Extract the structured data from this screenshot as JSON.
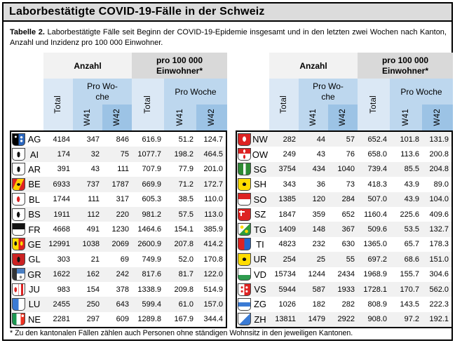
{
  "page": {
    "title": "Laborbestätigte COVID-19-Fälle in der Schweiz",
    "caption_label": "Tabelle 2.",
    "caption_text": " Laborbestätigte Fälle seit Beginn der COVID-19-Epidemie insgesamt und in den letzten zwei Wochen nach Kanton, Anzahl und Inzidenz pro 100 000 Einwohner.",
    "footnote": "* Zu den kantonalen Fällen zählen auch Personen ohne ständigen Wohnsitz in den jeweiligen Kantonen."
  },
  "header": {
    "anzahl": "Anzahl",
    "per_100k": "pro 100 000 Einwohner*",
    "total": "Total",
    "pro_woche_wrapped": "Pro Wo-\nche",
    "pro_woche": "Pro Woche",
    "w41": "W41",
    "w42": "W42"
  },
  "left_rows": [
    {
      "canton": "AG",
      "total": "4184",
      "w41": "347",
      "w42": "846",
      "total_100k": "616.9",
      "w41_100k": "51.2",
      "w42_100k": "124.7"
    },
    {
      "canton": "AI",
      "total": "174",
      "w41": "32",
      "w42": "75",
      "total_100k": "1077.7",
      "w41_100k": "198.2",
      "w42_100k": "464.5"
    },
    {
      "canton": "AR",
      "total": "391",
      "w41": "43",
      "w42": "111",
      "total_100k": "707.9",
      "w41_100k": "77.9",
      "w42_100k": "201.0"
    },
    {
      "canton": "BE",
      "total": "6933",
      "w41": "737",
      "w42": "1787",
      "total_100k": "669.9",
      "w41_100k": "71.2",
      "w42_100k": "172.7"
    },
    {
      "canton": "BL",
      "total": "1744",
      "w41": "111",
      "w42": "317",
      "total_100k": "605.3",
      "w41_100k": "38.5",
      "w42_100k": "110.0"
    },
    {
      "canton": "BS",
      "total": "1911",
      "w41": "112",
      "w42": "220",
      "total_100k": "981.2",
      "w41_100k": "57.5",
      "w42_100k": "113.0"
    },
    {
      "canton": "FR",
      "total": "4668",
      "w41": "491",
      "w42": "1230",
      "total_100k": "1464.6",
      "w41_100k": "154.1",
      "w42_100k": "385.9"
    },
    {
      "canton": "GE",
      "total": "12991",
      "w41": "1038",
      "w42": "2069",
      "total_100k": "2600.9",
      "w41_100k": "207.8",
      "w42_100k": "414.2"
    },
    {
      "canton": "GL",
      "total": "303",
      "w41": "21",
      "w42": "69",
      "total_100k": "749.9",
      "w41_100k": "52.0",
      "w42_100k": "170.8"
    },
    {
      "canton": "GR",
      "total": "1622",
      "w41": "162",
      "w42": "242",
      "total_100k": "817.6",
      "w41_100k": "81.7",
      "w42_100k": "122.0"
    },
    {
      "canton": "JU",
      "total": "983",
      "w41": "154",
      "w42": "378",
      "total_100k": "1338.9",
      "w41_100k": "209.8",
      "w42_100k": "514.9"
    },
    {
      "canton": "LU",
      "total": "2455",
      "w41": "250",
      "w42": "643",
      "total_100k": "599.4",
      "w41_100k": "61.0",
      "w42_100k": "157.0"
    },
    {
      "canton": "NE",
      "total": "2281",
      "w41": "297",
      "w42": "609",
      "total_100k": "1289.8",
      "w41_100k": "167.9",
      "w42_100k": "344.4"
    }
  ],
  "right_rows": [
    {
      "canton": "NW",
      "total": "282",
      "w41": "44",
      "w42": "57",
      "total_100k": "652.4",
      "w41_100k": "101.8",
      "w42_100k": "131.9"
    },
    {
      "canton": "OW",
      "total": "249",
      "w41": "43",
      "w42": "76",
      "total_100k": "658.0",
      "w41_100k": "113.6",
      "w42_100k": "200.8"
    },
    {
      "canton": "SG",
      "total": "3754",
      "w41": "434",
      "w42": "1040",
      "total_100k": "739.4",
      "w41_100k": "85.5",
      "w42_100k": "204.8"
    },
    {
      "canton": "SH",
      "total": "343",
      "w41": "36",
      "w42": "73",
      "total_100k": "418.3",
      "w41_100k": "43.9",
      "w42_100k": "89.0"
    },
    {
      "canton": "SO",
      "total": "1385",
      "w41": "120",
      "w42": "284",
      "total_100k": "507.0",
      "w41_100k": "43.9",
      "w42_100k": "104.0"
    },
    {
      "canton": "SZ",
      "total": "1847",
      "w41": "359",
      "w42": "652",
      "total_100k": "1160.4",
      "w41_100k": "225.6",
      "w42_100k": "409.6"
    },
    {
      "canton": "TG",
      "total": "1409",
      "w41": "148",
      "w42": "367",
      "total_100k": "509.6",
      "w41_100k": "53.5",
      "w42_100k": "132.7"
    },
    {
      "canton": "TI",
      "total": "4823",
      "w41": "232",
      "w42": "630",
      "total_100k": "1365.0",
      "w41_100k": "65.7",
      "w42_100k": "178.3"
    },
    {
      "canton": "UR",
      "total": "254",
      "w41": "25",
      "w42": "55",
      "total_100k": "697.2",
      "w41_100k": "68.6",
      "w42_100k": "151.0"
    },
    {
      "canton": "VD",
      "total": "15734",
      "w41": "1244",
      "w42": "2434",
      "total_100k": "1968.9",
      "w41_100k": "155.7",
      "w42_100k": "304.6"
    },
    {
      "canton": "VS",
      "total": "5944",
      "w41": "587",
      "w42": "1933",
      "total_100k": "1728.1",
      "w41_100k": "170.7",
      "w42_100k": "562.0"
    },
    {
      "canton": "ZG",
      "total": "1026",
      "w41": "182",
      "w42": "282",
      "total_100k": "808.9",
      "w41_100k": "143.5",
      "w42_100k": "222.3"
    },
    {
      "canton": "ZH",
      "total": "13811",
      "w41": "1479",
      "w42": "2922",
      "total_100k": "908.0",
      "w41_100k": "97.2",
      "w42_100k": "192.1"
    }
  ],
  "colors": {
    "title-bg": "#dcdcdc",
    "group-anzahl": "#f2f2f2",
    "group-per100k": "#d9d9d9",
    "col-total": "#dbe8f5",
    "col-week": "#bdd7ee",
    "col-w42": "#9cc3e5",
    "stripe": "#f1f1f1"
  }
}
